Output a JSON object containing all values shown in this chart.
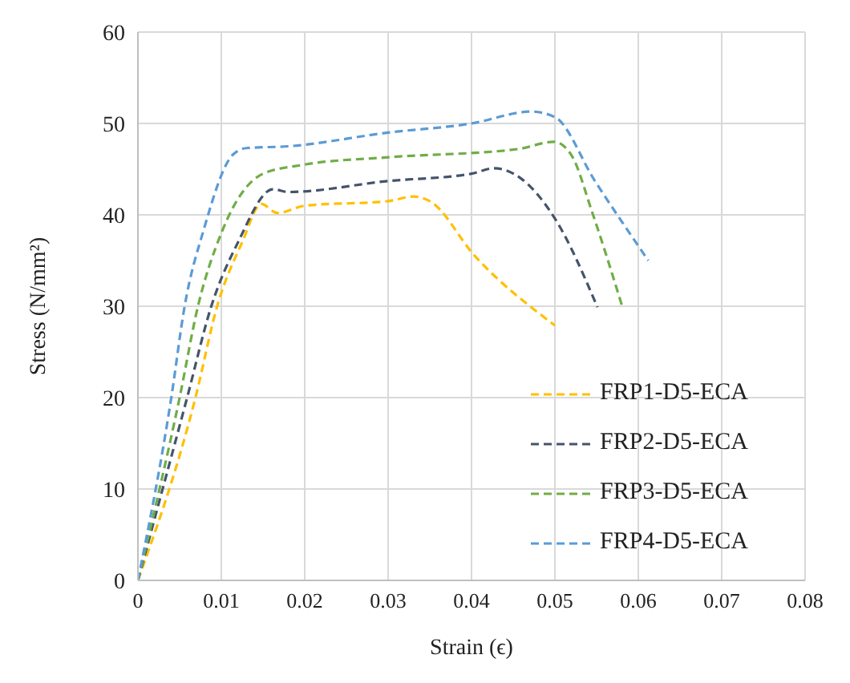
{
  "chart_data": {
    "type": "line",
    "xlabel": "Strain (ϵ)",
    "ylabel": "Stress (N/mm²)",
    "xlim": [
      0,
      0.08
    ],
    "xticks": [
      0,
      0.01,
      0.02,
      0.03,
      0.04,
      0.05,
      0.06,
      0.07,
      0.08
    ],
    "ylim": [
      0,
      60
    ],
    "yticks": [
      0,
      10,
      20,
      30,
      40,
      50,
      60
    ],
    "grid": true,
    "legend": "bottom right",
    "line_style": "dashed",
    "marker": "none",
    "series": [
      {
        "name": "FRP1-D5-ECA",
        "color": "#ffc000",
        "x": [
          0,
          0.0069,
          0.0095,
          0.0125,
          0.0148,
          0.0167,
          0.02,
          0.03,
          0.033,
          0.035,
          0.0404,
          0.05
        ],
        "values": [
          0,
          20,
          30,
          37,
          41.2,
          40.2,
          41,
          41.5,
          42,
          41.5,
          35.5,
          27.9
        ]
      },
      {
        "name": "FRP2-D5-ECA",
        "color": "#44546a",
        "x": [
          0,
          0.0059,
          0.0088,
          0.012,
          0.0162,
          0.018,
          0.03,
          0.04,
          0.0427,
          0.0459,
          0.05,
          0.0551
        ],
        "values": [
          0,
          20,
          30,
          37,
          42.8,
          42.5,
          43.7,
          44.5,
          45.1,
          44,
          39.6,
          29.9
        ]
      },
      {
        "name": "FRP3-D5-ECA",
        "color": "#70ad47",
        "x": [
          0,
          0.005,
          0.0072,
          0.01,
          0.015,
          0.02,
          0.03,
          0.0456,
          0.0499,
          0.052,
          0.0545,
          0.0581
        ],
        "values": [
          0,
          20,
          30,
          38,
          44.5,
          45.5,
          46.3,
          47.2,
          48,
          46.5,
          40.2,
          29.9
        ]
      },
      {
        "name": "FRP4-D5-ECA",
        "color": "#5b9bd5",
        "x": [
          0,
          0.004,
          0.0056,
          0.0079,
          0.0114,
          0.013,
          0.018,
          0.03,
          0.04,
          0.0472,
          0.05,
          0.0548,
          0.0612
        ],
        "values": [
          0,
          20,
          30,
          38.4,
          46.6,
          47.3,
          47.5,
          49,
          50,
          51.3,
          50.7,
          43.7,
          35
        ]
      }
    ]
  }
}
